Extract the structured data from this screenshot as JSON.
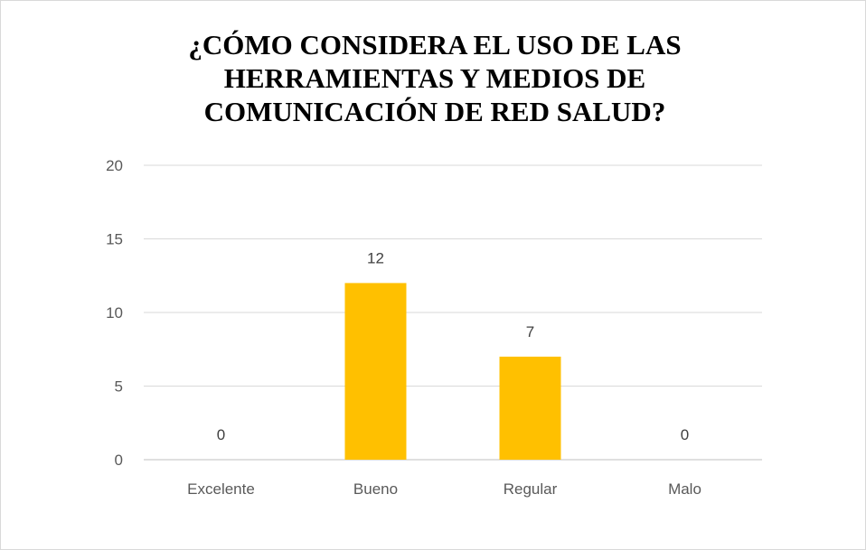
{
  "chart_data": {
    "type": "bar",
    "title": "¿CÓMO CONSIDERA EL USO DE LAS HERRAMIENTAS Y MEDIOS DE COMUNICACIÓN DE RED SALUD?",
    "categories": [
      "Excelente",
      "Bueno",
      "Regular",
      "Malo"
    ],
    "values": [
      0,
      12,
      7,
      0
    ],
    "data_labels": [
      "0",
      "12",
      "7",
      "0"
    ],
    "yticks": [
      "0",
      "5",
      "10",
      "15",
      "20"
    ],
    "ylim": [
      0,
      20
    ],
    "grid": true,
    "legend": "none",
    "bar_color": "#FFC000",
    "gridline_color": "#d9d9d9",
    "axis_color": "#bfbfbf"
  }
}
